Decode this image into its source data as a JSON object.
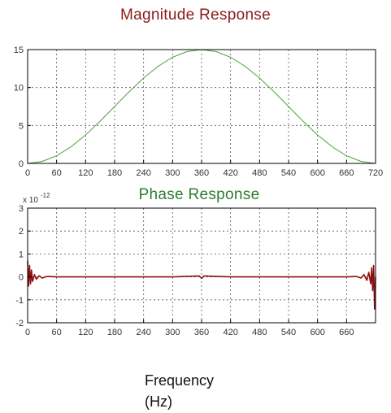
{
  "colors": {
    "magnitude_title": "#8b1a1a",
    "phase_title": "#2e7d32",
    "magnitude_line": "#5aa84a",
    "phase_line": "#8b1010",
    "grid": "#555555",
    "axis": "#000000",
    "tick_text": "#333333"
  },
  "xlabel_lines": [
    "Frequency",
    "(Hz)"
  ],
  "chart_data": [
    {
      "type": "line",
      "title": "Magnitude Response",
      "xlabel": "",
      "ylabel": "",
      "xlim": [
        0,
        720
      ],
      "ylim": [
        0,
        15
      ],
      "xticks": [
        0,
        60,
        120,
        180,
        240,
        300,
        360,
        420,
        480,
        540,
        600,
        660,
        720
      ],
      "yticks": [
        0,
        5,
        10,
        15
      ],
      "grid": true,
      "series": [
        {
          "x": [
            0,
            30,
            60,
            90,
            120,
            150,
            180,
            210,
            240,
            270,
            300,
            330,
            360,
            390,
            420,
            450,
            480,
            510,
            540,
            570,
            600,
            630,
            660,
            690,
            720
          ],
          "y": [
            0,
            0.26,
            1.0,
            2.2,
            3.75,
            5.56,
            7.5,
            9.44,
            11.25,
            12.8,
            14.0,
            14.74,
            15.0,
            14.74,
            14.0,
            12.8,
            11.25,
            9.44,
            7.5,
            5.56,
            3.75,
            2.2,
            1.0,
            0.26,
            0
          ]
        }
      ]
    },
    {
      "type": "line",
      "title": "Phase Response",
      "xlabel": "",
      "ylabel": "",
      "y_exponent_label": "x 10",
      "y_exponent": "-12",
      "xlim": [
        0,
        720
      ],
      "ylim": [
        -2,
        3
      ],
      "xticks": [
        0,
        60,
        120,
        180,
        240,
        300,
        360,
        420,
        480,
        540,
        600,
        660
      ],
      "yticks": [
        -2,
        -1,
        0,
        1,
        2,
        3
      ],
      "grid": true,
      "series": [
        {
          "x": [
            0,
            2,
            4,
            6,
            8,
            10,
            14,
            18,
            24,
            30,
            40,
            60,
            120,
            180,
            240,
            300,
            355,
            360,
            365,
            420,
            480,
            540,
            600,
            660,
            680,
            690,
            696,
            702,
            706,
            710,
            712,
            714,
            716,
            718,
            720
          ],
          "y": [
            0.7,
            -0.4,
            0.5,
            -0.3,
            0.3,
            -0.2,
            0.1,
            -0.1,
            0.05,
            -0.05,
            0.02,
            0.0,
            0.0,
            0.0,
            0.0,
            0.0,
            0.04,
            -0.06,
            0.04,
            0.0,
            0.0,
            0.0,
            0.0,
            0.0,
            0.02,
            -0.05,
            0.1,
            -0.15,
            0.2,
            -0.3,
            0.4,
            -0.6,
            0.5,
            -1.4,
            0.0
          ]
        }
      ]
    }
  ]
}
